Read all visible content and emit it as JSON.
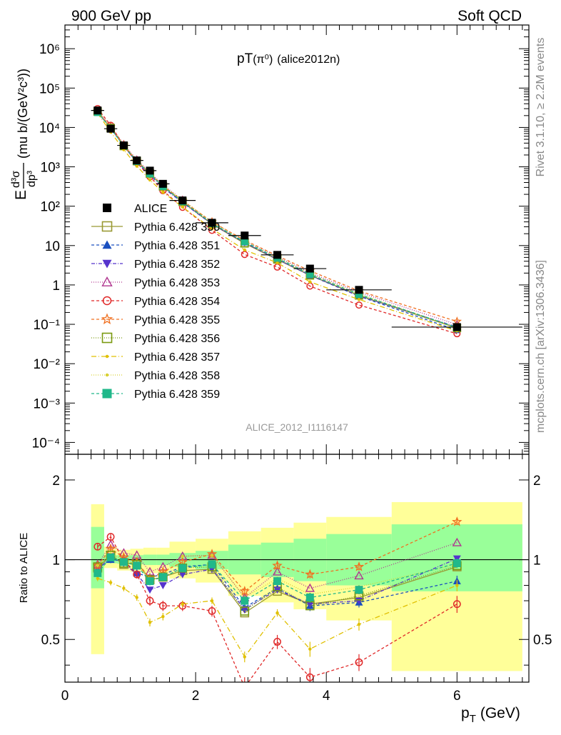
{
  "header": {
    "left": "900 GeV pp",
    "right": "Soft QCD",
    "plot_title_main": "pT",
    "plot_title_sub": "(π⁰)",
    "plot_title_tag": "(alice2012n)"
  },
  "side_labels": {
    "rivet": "Rivet 3.1.10, ≥ 2.2M events",
    "mcplots": "mcplots.cern.ch [arXiv:1306.3436]"
  },
  "watermark": "ALICE_2012_I1116147",
  "axes": {
    "ylabel_top": "E d³σ/dp³ (mu b/(GeV²c³))",
    "ylabel_top_parts": {
      "E": "E",
      "num": "d³σ",
      "den": "dp³",
      "units": "(mu b/(GeV²c³))"
    },
    "ylabel_ratio": "Ratio to ALICE",
    "xlabel": "p",
    "xlabel_sub": "T",
    "xlabel_unit": "(GeV)",
    "xticks": [
      "0",
      "2",
      "4",
      "6"
    ],
    "ytick_top": [
      "10⁻⁴",
      "10⁻³",
      "10⁻²",
      "10⁻¹",
      "1",
      "10",
      "10²",
      "10³",
      "10⁴",
      "10⁵",
      "10⁶"
    ],
    "ytick_ratio": [
      "0.5",
      "1",
      "2"
    ]
  },
  "chart_data": [
    {
      "type": "scatter",
      "name": "main",
      "xlim": [
        0,
        7.1
      ],
      "ylim": [
        5e-05,
        4000000
      ],
      "ylog": true,
      "x": [
        0.5,
        0.7,
        0.9,
        1.1,
        1.3,
        1.5,
        1.8,
        2.25,
        2.75,
        3.25,
        3.75,
        4.5,
        6.0
      ],
      "xerr": [
        0.1,
        0.1,
        0.1,
        0.1,
        0.1,
        0.1,
        0.2,
        0.25,
        0.25,
        0.25,
        0.25,
        0.5,
        1.0
      ],
      "data": [
        27000,
        9300,
        3500,
        1450,
        800,
        370,
        140,
        38,
        18,
        5.8,
        2.6,
        0.75,
        0.085
      ],
      "legend": [
        {
          "label": "ALICE",
          "color": "#000000",
          "marker": "square-filled",
          "dash": ""
        },
        {
          "label": "Pythia 6.428 350",
          "color": "#999933",
          "marker": "square-open",
          "dash": ""
        },
        {
          "label": "Pythia 6.428 351",
          "color": "#1a4fbf",
          "marker": "triangle-up-filled",
          "dash": "4,3"
        },
        {
          "label": "Pythia 6.428 352",
          "color": "#5533cc",
          "marker": "triangle-down-filled",
          "dash": "5,2,1,2"
        },
        {
          "label": "Pythia 6.428 353",
          "color": "#b0358f",
          "marker": "triangle-up-open",
          "dash": "1,2"
        },
        {
          "label": "Pythia 6.428 354",
          "color": "#e02828",
          "marker": "circle-open",
          "dash": "4,3"
        },
        {
          "label": "Pythia 6.428 355",
          "color": "#f07020",
          "marker": "star-open",
          "dash": "4,3"
        },
        {
          "label": "Pythia 6.428 356",
          "color": "#7a9a10",
          "marker": "square-open",
          "dash": "1,2"
        },
        {
          "label": "Pythia 6.428 357",
          "color": "#e0c000",
          "marker": "dot",
          "dash": "7,3,1,3"
        },
        {
          "label": "Pythia 6.428 358",
          "color": "#d8d030",
          "marker": "dot",
          "dash": "1,2"
        },
        {
          "label": "Pythia 6.428 359",
          "color": "#20b88a",
          "marker": "square-filled",
          "dash": "4,3"
        }
      ]
    },
    {
      "type": "scatter",
      "name": "ratio",
      "xlim": [
        0,
        7.1
      ],
      "ylim": [
        0.345,
        2.5
      ],
      "ylog": true,
      "x": [
        0.5,
        0.7,
        0.9,
        1.1,
        1.3,
        1.5,
        1.8,
        2.25,
        2.75,
        3.25,
        3.75,
        4.5,
        6.0
      ],
      "bands": {
        "edges": [
          0.4,
          0.6,
          0.8,
          1.0,
          1.2,
          1.4,
          1.6,
          2.0,
          2.5,
          3.0,
          3.5,
          4.0,
          5.0,
          7.0
        ],
        "yellow": [
          [
            0.44,
            1.62
          ],
          [
            0.93,
            1.12
          ],
          [
            0.91,
            1.09
          ],
          [
            0.9,
            1.1
          ],
          [
            0.89,
            1.11
          ],
          [
            0.89,
            1.11
          ],
          [
            0.85,
            1.17
          ],
          [
            0.82,
            1.2
          ],
          [
            0.73,
            1.28
          ],
          [
            0.69,
            1.32
          ],
          [
            0.65,
            1.38
          ],
          [
            0.59,
            1.45
          ],
          [
            0.38,
            1.65
          ]
        ],
        "green": [
          [
            0.78,
            1.33
          ],
          [
            0.97,
            1.04
          ],
          [
            0.965,
            1.04
          ],
          [
            0.96,
            1.04
          ],
          [
            0.955,
            1.045
          ],
          [
            0.955,
            1.045
          ],
          [
            0.94,
            1.06
          ],
          [
            0.92,
            1.08
          ],
          [
            0.88,
            1.14
          ],
          [
            0.86,
            1.16
          ],
          [
            0.83,
            1.2
          ],
          [
            0.8,
            1.25
          ],
          [
            0.76,
            1.36
          ]
        ]
      },
      "series": [
        {
          "values": [
            0.93,
            1.04,
            0.96,
            0.98,
            0.84,
            0.86,
            0.91,
            0.92,
            0.63,
            0.76,
            0.68,
            0.72,
            0.94
          ]
        },
        {
          "values": [
            0.93,
            1.0,
            0.99,
            0.89,
            0.86,
            0.88,
            0.94,
            0.96,
            0.66,
            0.78,
            0.67,
            0.69,
            0.83
          ],
          "err": [
            0.03,
            0.03,
            0.03,
            0.03,
            0.03,
            0.03,
            0.03,
            0.03,
            0.03,
            0.03,
            0.03,
            0.03,
            0.04
          ]
        },
        {
          "values": [
            0.91,
            1.03,
            0.97,
            0.88,
            0.77,
            0.8,
            0.88,
            0.92,
            0.65,
            0.77,
            0.68,
            0.7,
            1.01
          ]
        },
        {
          "values": [
            0.96,
            1.14,
            1.06,
            1.04,
            0.9,
            0.94,
            1.03,
            1.04,
            0.72,
            0.9,
            0.78,
            0.87,
            1.16
          ]
        },
        {
          "values": [
            1.12,
            1.22,
            0.99,
            0.88,
            0.7,
            0.67,
            0.67,
            0.64,
            0.33,
            0.49,
            0.36,
            0.41,
            0.68
          ],
          "err": [
            0.03,
            0.03,
            0.03,
            0.03,
            0.03,
            0.03,
            0.03,
            0.03,
            0.03,
            0.03,
            0.03,
            0.03,
            0.05
          ]
        },
        {
          "values": [
            0.95,
            1.1,
            1.02,
            0.98,
            0.85,
            0.9,
            0.98,
            1.05,
            0.76,
            0.95,
            0.88,
            0.94,
            1.39
          ],
          "err": [
            0.03,
            0.03,
            0.03,
            0.03,
            0.03,
            0.03,
            0.03,
            0.03,
            0.03,
            0.03,
            0.03,
            0.03,
            0.04
          ]
        },
        {
          "values": [
            0.94,
            1.04,
            0.97,
            0.96,
            0.84,
            0.86,
            0.93,
            0.94,
            0.64,
            0.79,
            0.67,
            0.73,
            0.95
          ]
        },
        {
          "values": [
            0.85,
            0.82,
            0.78,
            0.72,
            0.58,
            0.61,
            0.68,
            0.7,
            0.43,
            0.63,
            0.46,
            0.57,
            0.8
          ],
          "err": [
            0.02,
            0.02,
            0.02,
            0.02,
            0.02,
            0.02,
            0.02,
            0.02,
            0.02,
            0.02,
            0.03,
            0.03,
            0.04
          ]
        },
        {
          "values": [
            0.95,
            1.05,
            1.0,
            0.96,
            0.85,
            0.88,
            1.03,
            1.04,
            0.72,
            0.85,
            0.74,
            0.79,
            0.96
          ]
        },
        {
          "values": [
            0.89,
            1.02,
            0.98,
            0.95,
            0.83,
            0.86,
            0.93,
            0.96,
            0.7,
            0.83,
            0.72,
            0.77,
            0.97
          ],
          "err": [
            0.03,
            0.03,
            0.03,
            0.03,
            0.03,
            0.03,
            0.03,
            0.03,
            0.03,
            0.03,
            0.03,
            0.03,
            0.04
          ]
        }
      ]
    }
  ]
}
